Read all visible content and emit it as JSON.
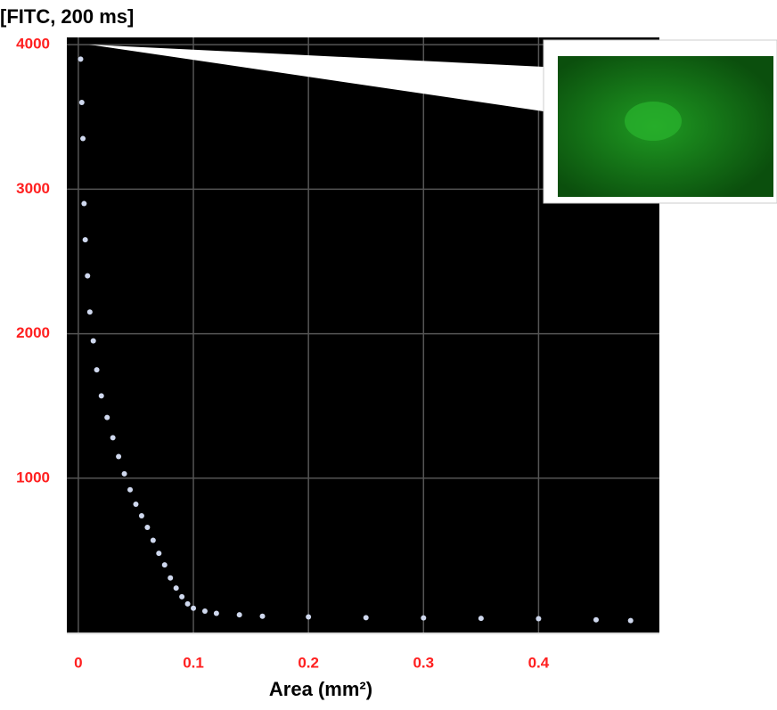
{
  "chart_data": {
    "type": "scatter",
    "title": "[FITC, 200 ms]",
    "x_label": "Area (mm²)",
    "series": [
      {
        "color": "#cfd8ee",
        "x": [
          0.002,
          0.003,
          0.004,
          0.005,
          0.006,
          0.008,
          0.01,
          0.013,
          0.016,
          0.02,
          0.025,
          0.03,
          0.035,
          0.04,
          0.045,
          0.05,
          0.055,
          0.06,
          0.065,
          0.07,
          0.075,
          0.08,
          0.085,
          0.09,
          0.095,
          0.1,
          0.11,
          0.12,
          0.14,
          0.16,
          0.2,
          0.25,
          0.3,
          0.35,
          0.4,
          0.45,
          0.48
        ],
        "values": [
          3900,
          3600,
          3350,
          2900,
          2650,
          2400,
          2150,
          1950,
          1750,
          1570,
          1420,
          1280,
          1150,
          1030,
          920,
          820,
          740,
          660,
          570,
          480,
          400,
          310,
          240,
          180,
          130,
          100,
          80,
          65,
          55,
          45,
          40,
          35,
          33,
          30,
          28,
          20,
          15
        ]
      }
    ],
    "xlim": [
      -0.01,
      0.505
    ],
    "xticks": [
      0,
      0.1,
      0.2,
      0.3,
      0.4
    ],
    "ylim": [
      -80,
      4050
    ],
    "yticks": [
      1000,
      2000,
      3000,
      4000
    ],
    "grid": true
  }
}
